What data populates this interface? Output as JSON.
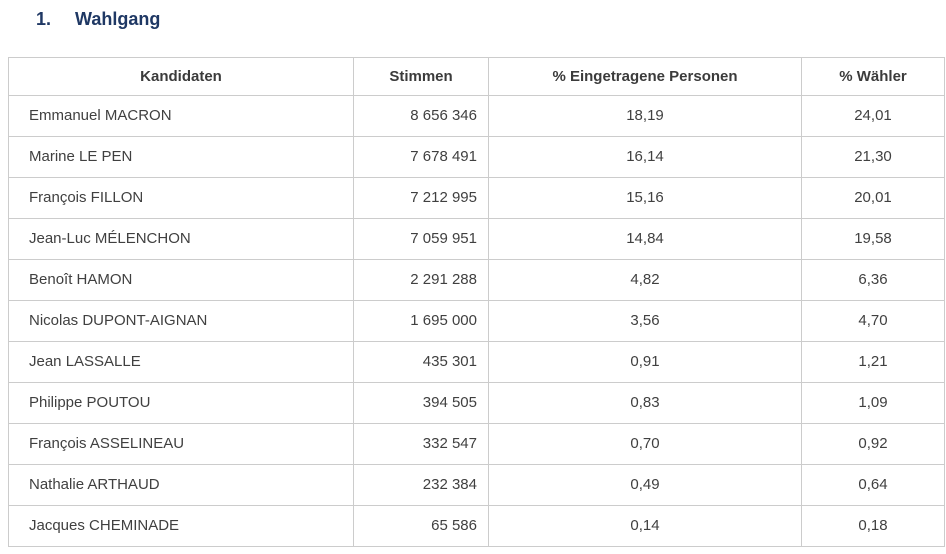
{
  "heading": {
    "number": "1.",
    "text": "Wahlgang"
  },
  "table": {
    "columns": [
      "Kandidaten",
      "Stimmen",
      "% Eingetragene Personen",
      "% Wähler"
    ],
    "rows": [
      {
        "kandidat": "Emmanuel MACRON",
        "stimmen": "8 656 346",
        "pct_eingetragene": "18,19",
        "pct_waehler": "24,01"
      },
      {
        "kandidat": "Marine LE PEN",
        "stimmen": "7 678 491",
        "pct_eingetragene": "16,14",
        "pct_waehler": "21,30"
      },
      {
        "kandidat": "François FILLON",
        "stimmen": "7 212 995",
        "pct_eingetragene": "15,16",
        "pct_waehler": "20,01"
      },
      {
        "kandidat": "Jean-Luc MÉLENCHON",
        "stimmen": "7 059 951",
        "pct_eingetragene": "14,84",
        "pct_waehler": "19,58"
      },
      {
        "kandidat": "Benoît HAMON",
        "stimmen": "2 291 288",
        "pct_eingetragene": "4,82",
        "pct_waehler": "6,36"
      },
      {
        "kandidat": "Nicolas DUPONT-AIGNAN",
        "stimmen": "1 695 000",
        "pct_eingetragene": "3,56",
        "pct_waehler": "4,70"
      },
      {
        "kandidat": "Jean LASSALLE",
        "stimmen": "435 301",
        "pct_eingetragene": "0,91",
        "pct_waehler": "1,21"
      },
      {
        "kandidat": "Philippe POUTOU",
        "stimmen": "394 505",
        "pct_eingetragene": "0,83",
        "pct_waehler": "1,09"
      },
      {
        "kandidat": "François ASSELINEAU",
        "stimmen": "332 547",
        "pct_eingetragene": "0,70",
        "pct_waehler": "0,92"
      },
      {
        "kandidat": "Nathalie ARTHAUD",
        "stimmen": "232 384",
        "pct_eingetragene": "0,49",
        "pct_waehler": "0,64"
      },
      {
        "kandidat": "Jacques CHEMINADE",
        "stimmen": "65 586",
        "pct_eingetragene": "0,14",
        "pct_waehler": "0,18"
      }
    ]
  },
  "colors": {
    "heading_text": "#1f3864",
    "body_text": "#404040",
    "header_text": "#3b3b3b",
    "table_border": "#cccccc",
    "background": "#ffffff"
  }
}
